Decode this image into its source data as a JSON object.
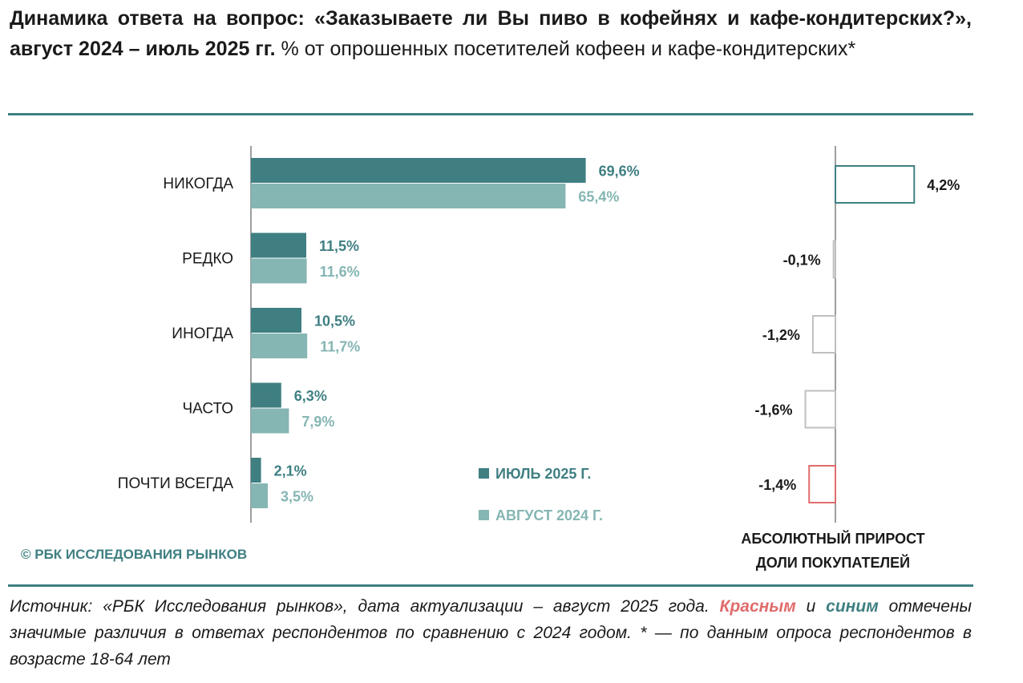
{
  "header": {
    "title_bold": "Динамика ответа на вопрос: «Заказываете ли Вы пиво в кофейнях и кафе-кондитерских?», август 2024 – июль 2025 гг.",
    "title_rest": " % от опрошенных посетителей кофеен и кафе-кондитерских*"
  },
  "credit": "© РБК ИССЛЕДОВАНИЯ РЫНКОВ",
  "footer": {
    "part1": "Источник: «РБК Исследования рынков», дата актуализации – август 2025 года. ",
    "red_word": "Красным",
    "part2": " и ",
    "blue_word": "синим",
    "part3": " отмечены значимые различия в ответах респондентов по сравнению с 2024 годом. * — по данным опроса респондентов в возрасте 18-64 лет"
  },
  "colors": {
    "series_2025": "#3f7f82",
    "series_2024": "#85b6b3",
    "sig_up": "#3f7f82",
    "sig_down": "#e06c6c",
    "neutral": "#bfbfbf",
    "axis": "#7f7f7f"
  },
  "chart_data": [
    {
      "type": "bar",
      "orientation": "horizontal",
      "categories": [
        "НИКОГДА",
        "РЕДКО",
        "ИНОГДА",
        "ЧАСТО",
        "ПОЧТИ ВСЕГДА"
      ],
      "series": [
        {
          "name": "ИЮЛЬ 2025 Г.",
          "values": [
            69.6,
            11.5,
            10.5,
            6.3,
            2.1
          ],
          "labels": [
            "69,6%",
            "11,5%",
            "10,5%",
            "6,3%",
            "2,1%"
          ]
        },
        {
          "name": "АВГУСТ 2024 Г.",
          "values": [
            65.4,
            11.6,
            11.7,
            7.9,
            3.5
          ],
          "labels": [
            "65,4%",
            "11,6%",
            "11,7%",
            "7,9%",
            "3,5%"
          ]
        }
      ],
      "xlim": [
        0,
        100
      ],
      "legend": "bottom-right"
    },
    {
      "type": "bar",
      "orientation": "horizontal",
      "title": "АБСОЛЮТНЫЙ ПРИРОСТ ДОЛИ ПОКУПАТЕЛЕЙ",
      "title_lines": [
        "АБСОЛЮТНЫЙ ПРИРОСТ",
        "ДОЛИ ПОКУПАТЕЛЕЙ"
      ],
      "categories": [
        "НИКОГДА",
        "РЕДКО",
        "ИНОГДА",
        "ЧАСТО",
        "ПОЧТИ ВСЕГДА"
      ],
      "values": [
        4.2,
        -0.1,
        -1.2,
        -1.6,
        -1.4
      ],
      "labels": [
        "4,2%",
        "-0,1%",
        "-1,2%",
        "-1,6%",
        "-1,4%"
      ],
      "significance": [
        "up",
        "none",
        "none",
        "none",
        "down"
      ]
    }
  ]
}
